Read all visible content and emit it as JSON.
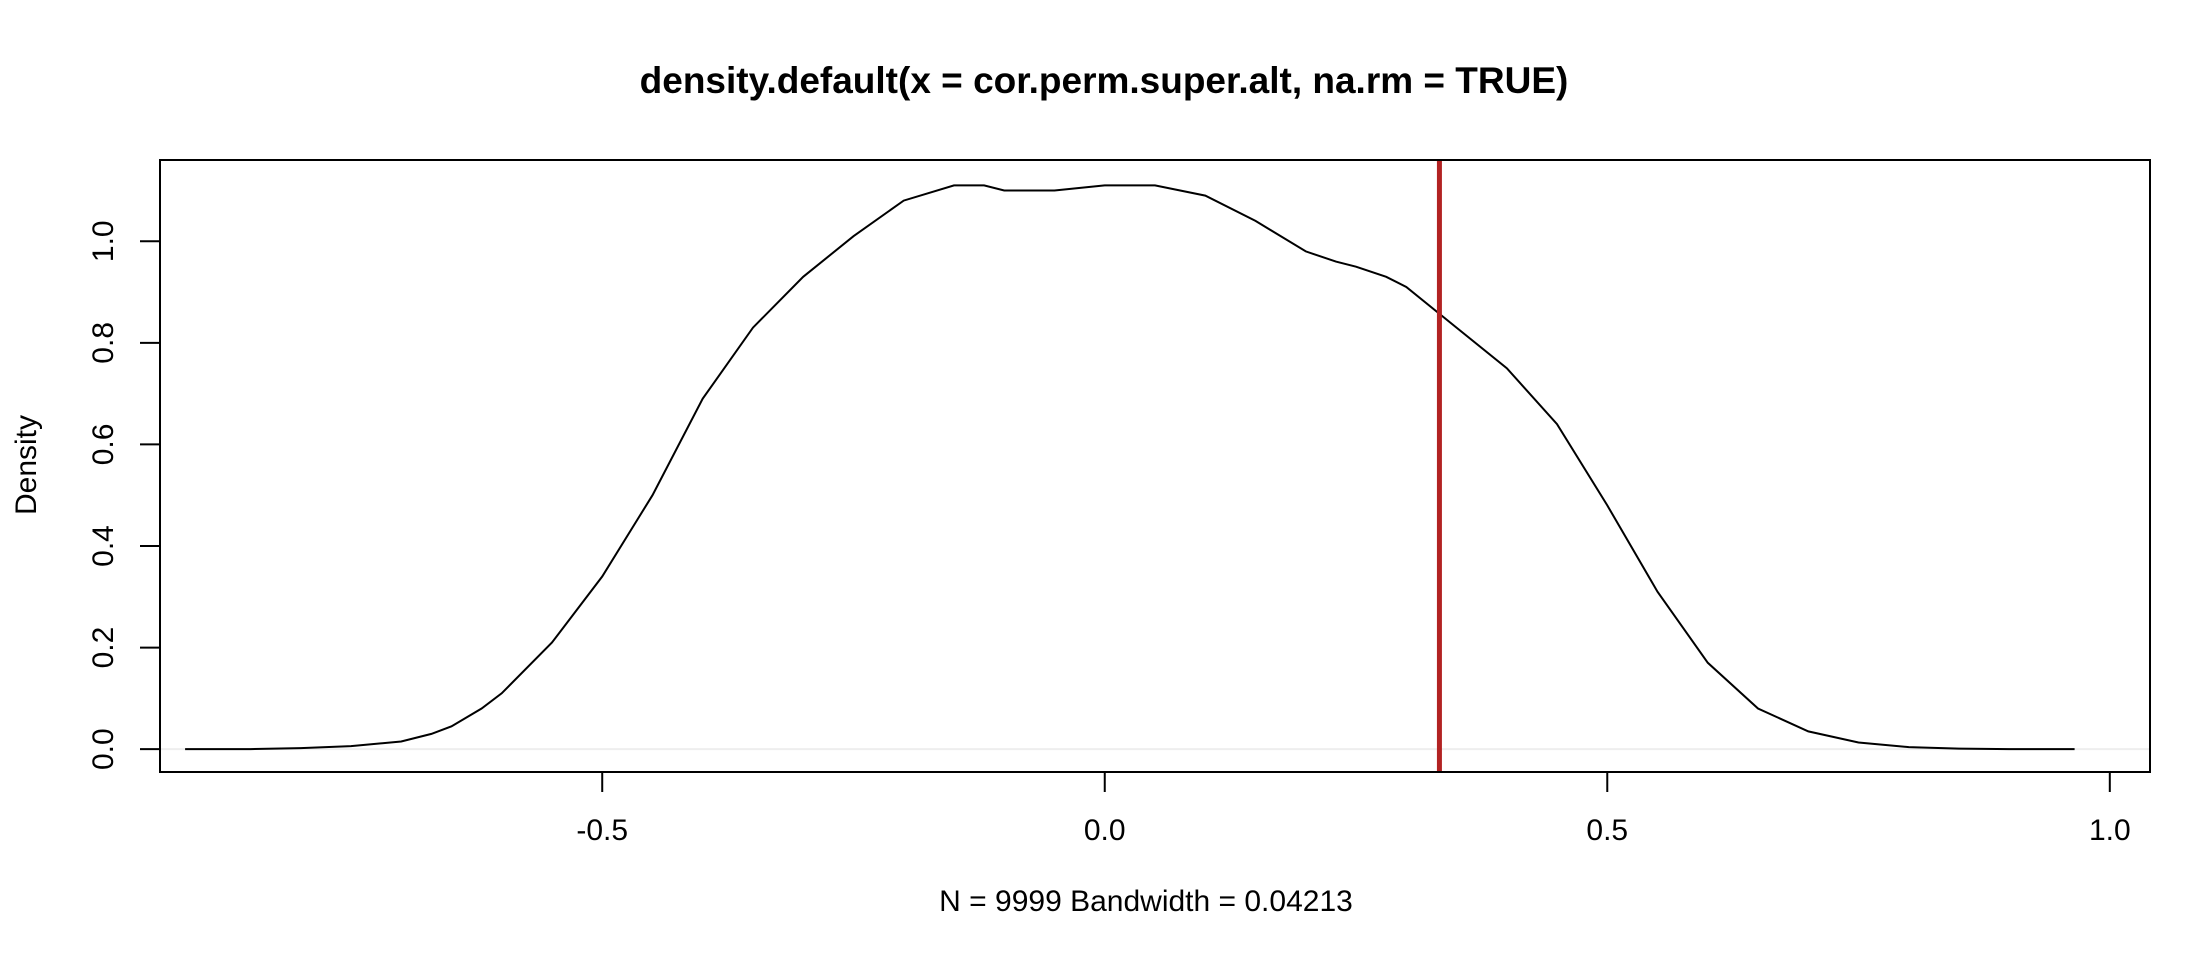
{
  "chart_data": {
    "type": "line",
    "title": "density.default(x = cor.perm.super.alt, na.rm = TRUE)",
    "xlabel": "N = 9999   Bandwidth = 0.04213",
    "ylabel": "Density",
    "xlim": [
      -0.94,
      1.04
    ],
    "ylim": [
      -0.045,
      1.16
    ],
    "x_ticks": [
      -0.5,
      0.0,
      0.5,
      1.0
    ],
    "x_tick_labels": [
      "-0.5",
      "0.0",
      "0.5",
      "1.0"
    ],
    "y_ticks": [
      0.0,
      0.2,
      0.4,
      0.6,
      0.8,
      1.0
    ],
    "y_tick_labels": [
      "0.0",
      "0.2",
      "0.4",
      "0.6",
      "0.8",
      "1.0"
    ],
    "grid": false,
    "series": [
      {
        "color": "#000000",
        "x": [
          -0.915,
          -0.85,
          -0.8,
          -0.75,
          -0.7,
          -0.67,
          -0.65,
          -0.62,
          -0.6,
          -0.55,
          -0.5,
          -0.45,
          -0.4,
          -0.35,
          -0.3,
          -0.25,
          -0.2,
          -0.15,
          -0.12,
          -0.1,
          -0.05,
          0.0,
          0.05,
          0.1,
          0.15,
          0.2,
          0.23,
          0.25,
          0.28,
          0.3,
          0.35,
          0.4,
          0.45,
          0.5,
          0.55,
          0.6,
          0.65,
          0.7,
          0.75,
          0.8,
          0.85,
          0.9,
          0.965
        ],
        "y": [
          0.0,
          0.0,
          0.002,
          0.006,
          0.015,
          0.03,
          0.045,
          0.08,
          0.11,
          0.21,
          0.34,
          0.5,
          0.69,
          0.83,
          0.93,
          1.01,
          1.08,
          1.11,
          1.11,
          1.1,
          1.1,
          1.11,
          1.11,
          1.09,
          1.04,
          0.98,
          0.96,
          0.95,
          0.93,
          0.91,
          0.83,
          0.75,
          0.64,
          0.48,
          0.31,
          0.17,
          0.08,
          0.035,
          0.013,
          0.004,
          0.001,
          0.0,
          0.0
        ]
      }
    ],
    "vline": {
      "x": 0.333,
      "color": "#B22222"
    },
    "zero_line_color": "#eeeeee"
  }
}
